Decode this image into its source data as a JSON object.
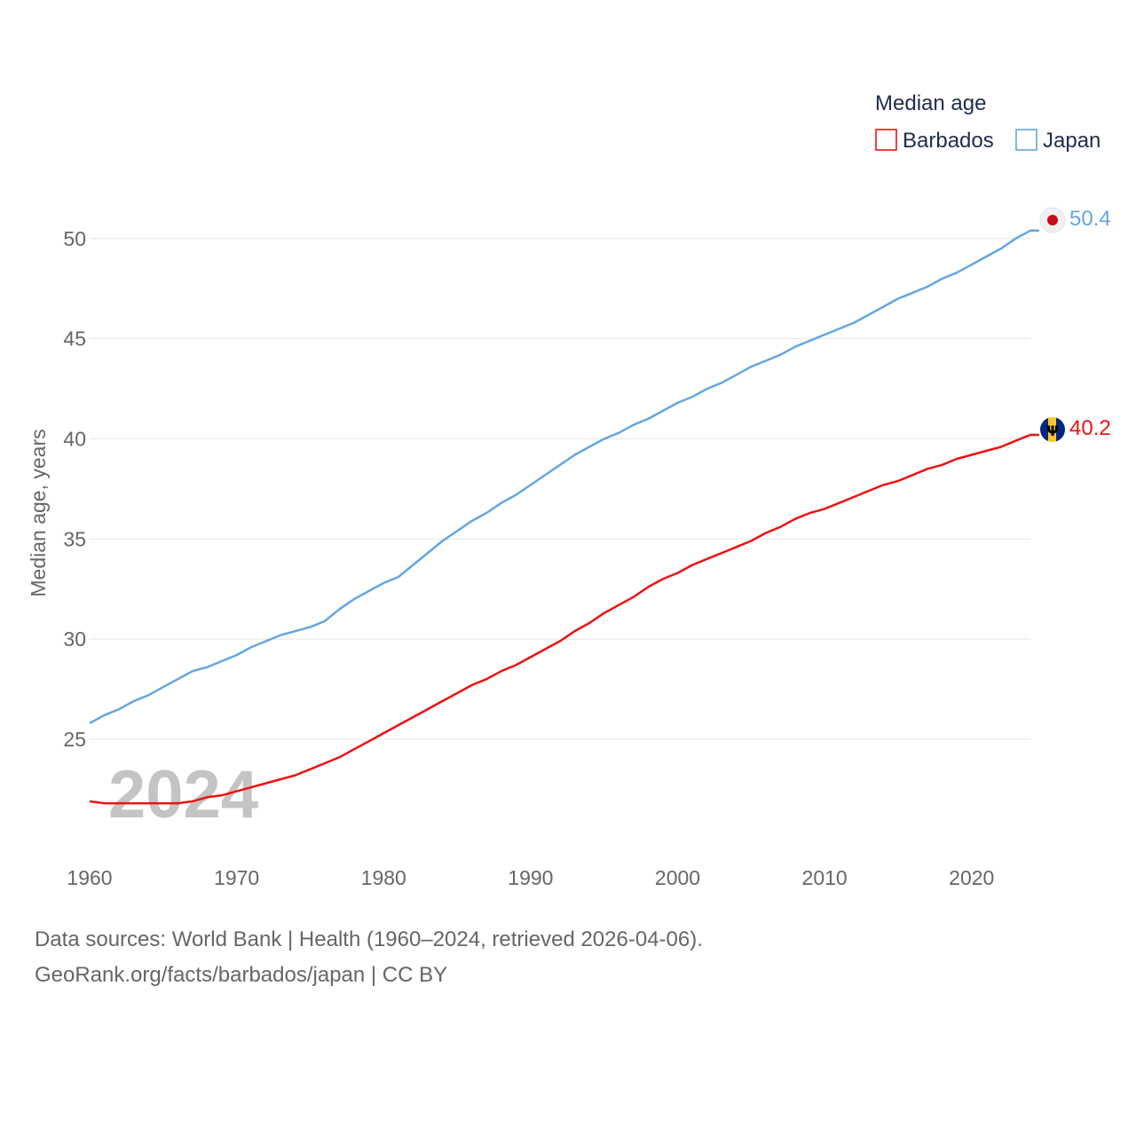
{
  "chart_data": {
    "type": "line",
    "ylabel": "Median age, years",
    "legend_title": "Median age",
    "current_year_label": "2024",
    "xlim": [
      1960,
      2024
    ],
    "ylim": [
      19.5,
      51.5
    ],
    "x_ticks": [
      1960,
      1970,
      1980,
      1990,
      2000,
      2010,
      2020
    ],
    "y_ticks": [
      25,
      30,
      35,
      40,
      45,
      50
    ],
    "x": [
      1960,
      1961,
      1962,
      1963,
      1964,
      1965,
      1966,
      1967,
      1968,
      1969,
      1970,
      1971,
      1972,
      1973,
      1974,
      1975,
      1976,
      1977,
      1978,
      1979,
      1980,
      1981,
      1982,
      1983,
      1984,
      1985,
      1986,
      1987,
      1988,
      1989,
      1990,
      1991,
      1992,
      1993,
      1994,
      1995,
      1996,
      1997,
      1998,
      1999,
      2000,
      2001,
      2002,
      2003,
      2004,
      2005,
      2006,
      2007,
      2008,
      2009,
      2010,
      2011,
      2012,
      2013,
      2014,
      2015,
      2016,
      2017,
      2018,
      2019,
      2020,
      2021,
      2022,
      2023,
      2024
    ],
    "series": [
      {
        "name": "Barbados",
        "color": "#ee1111",
        "end_label": "40.2",
        "flag": "barbados-flag",
        "values": [
          21.9,
          21.8,
          21.8,
          21.8,
          21.8,
          21.8,
          21.8,
          21.9,
          22.1,
          22.2,
          22.4,
          22.6,
          22.8,
          23.0,
          23.2,
          23.5,
          23.8,
          24.1,
          24.5,
          24.9,
          25.3,
          25.7,
          26.1,
          26.5,
          26.9,
          27.3,
          27.7,
          28.0,
          28.4,
          28.7,
          29.1,
          29.5,
          29.9,
          30.4,
          30.8,
          31.3,
          31.7,
          32.1,
          32.6,
          33.0,
          33.3,
          33.7,
          34.0,
          34.3,
          34.6,
          34.9,
          35.3,
          35.6,
          36.0,
          36.3,
          36.5,
          36.8,
          37.1,
          37.4,
          37.7,
          37.9,
          38.2,
          38.5,
          38.7,
          39.0,
          39.2,
          39.4,
          39.6,
          39.9,
          40.2
        ]
      },
      {
        "name": "Japan",
        "color": "#63a6e2",
        "end_label": "50.4",
        "flag": "japan-flag",
        "values": [
          25.8,
          26.2,
          26.5,
          26.9,
          27.2,
          27.6,
          28.0,
          28.4,
          28.6,
          28.9,
          29.2,
          29.6,
          29.9,
          30.2,
          30.4,
          30.6,
          30.9,
          31.5,
          32.0,
          32.4,
          32.8,
          33.1,
          33.7,
          34.3,
          34.9,
          35.4,
          35.9,
          36.3,
          36.8,
          37.2,
          37.7,
          38.2,
          38.7,
          39.2,
          39.6,
          40.0,
          40.3,
          40.7,
          41.0,
          41.4,
          41.8,
          42.1,
          42.5,
          42.8,
          43.2,
          43.6,
          43.9,
          44.2,
          44.6,
          44.9,
          45.2,
          45.5,
          45.8,
          46.2,
          46.6,
          47.0,
          47.3,
          47.6,
          48.0,
          48.3,
          48.7,
          49.1,
          49.5,
          50.0,
          50.4
        ]
      }
    ]
  },
  "footer": {
    "sources": "Data sources: World Bank | Health (1960–2024, retrieved 2026-04-06).",
    "attribution": "GeoRank.org/facts/barbados/japan | CC BY"
  }
}
